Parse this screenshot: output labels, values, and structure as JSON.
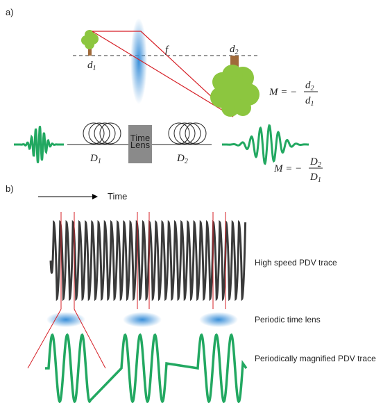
{
  "part_a": {
    "label": "a)",
    "focal_length": "f",
    "object_distance": {
      "base": "d",
      "sub": "1"
    },
    "image_distance": {
      "base": "d",
      "sub": "2"
    },
    "spatial_magnification": {
      "lhs": "M = −",
      "num": {
        "base": "d",
        "sub": "2"
      },
      "den": {
        "base": "d",
        "sub": "1"
      }
    },
    "time_lens": [
      "Time",
      "Lens"
    ],
    "dispersion_1": {
      "base": "D",
      "sub": "1"
    },
    "dispersion_2": {
      "base": "D",
      "sub": "2"
    },
    "temporal_magnification": {
      "lhs": "M = −",
      "num": {
        "base": "D",
        "sub": "2"
      },
      "den": {
        "base": "D",
        "sub": "1"
      }
    }
  },
  "part_b": {
    "label": "b)",
    "time_axis": "Time",
    "traces": [
      "High speed PDV trace",
      "Periodic time lens",
      "Periodically magnified PDV trace"
    ]
  }
}
